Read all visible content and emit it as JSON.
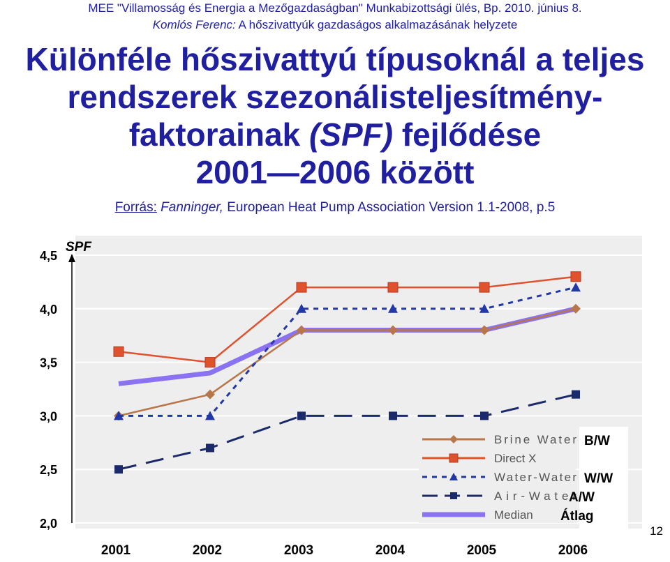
{
  "header": {
    "line1": "MEE \"Villamosság és Energia a Mezőgazdaságban\" Munkabizottsági ülés, Bp. 2010. június 8.",
    "author": "Komlós Ferenc:",
    "topic": "A hőszivattyúk gazdaságos alkalmazásának helyzete"
  },
  "title": {
    "line1": "Különféle hőszivattyú típusoknál a teljes",
    "line2": "rendszerek szezonálisteljesítmény-",
    "line3_a": "faktorainak",
    "line3_b": "(SPF)",
    "line3_c": "fejlődése",
    "line4": "2001—2006 között"
  },
  "source": {
    "label": "Forrás:",
    "author": "Fanninger,",
    "text": "European Heat Pump Association Version 1.1-2008, p.5"
  },
  "slide_number": "12",
  "chart_data": {
    "type": "line",
    "ylabel": "SPF",
    "ylim": [
      2.0,
      4.5
    ],
    "yticks": [
      "2,0",
      "2,5",
      "3,0",
      "3,5",
      "4,0",
      "4,5"
    ],
    "categories": [
      "2001",
      "2002",
      "2003",
      "2004",
      "2005",
      "2006"
    ],
    "grid": true,
    "legend_position": "bottom-right",
    "series": [
      {
        "name": "Brine Water",
        "tag": "B/W",
        "values": [
          3.0,
          3.2,
          3.8,
          3.8,
          3.8,
          4.0
        ],
        "color": "#b8764a",
        "marker": "diamond",
        "dash": "solid"
      },
      {
        "name": "Direct X",
        "tag": "",
        "values": [
          3.6,
          3.5,
          4.2,
          4.2,
          4.2,
          4.3
        ],
        "color": "#e0522e",
        "marker": "square-open",
        "dash": "solid"
      },
      {
        "name": "Water-Water",
        "tag": "W/W",
        "values": [
          3.0,
          3.0,
          4.0,
          4.0,
          4.0,
          4.2
        ],
        "color": "#2238a6",
        "marker": "triangle",
        "dash": "dotted"
      },
      {
        "name": "Air-Water",
        "tag": "A/W",
        "values": [
          2.5,
          2.7,
          3.0,
          3.0,
          3.0,
          3.2
        ],
        "color": "#1b2a6b",
        "marker": "square",
        "dash": "dashed"
      },
      {
        "name": "Median",
        "tag": "Átlag",
        "values": [
          3.3,
          3.4,
          3.8,
          3.8,
          3.8,
          4.0
        ],
        "color": "#8a72f2",
        "marker": "none",
        "dash": "thick"
      }
    ]
  }
}
